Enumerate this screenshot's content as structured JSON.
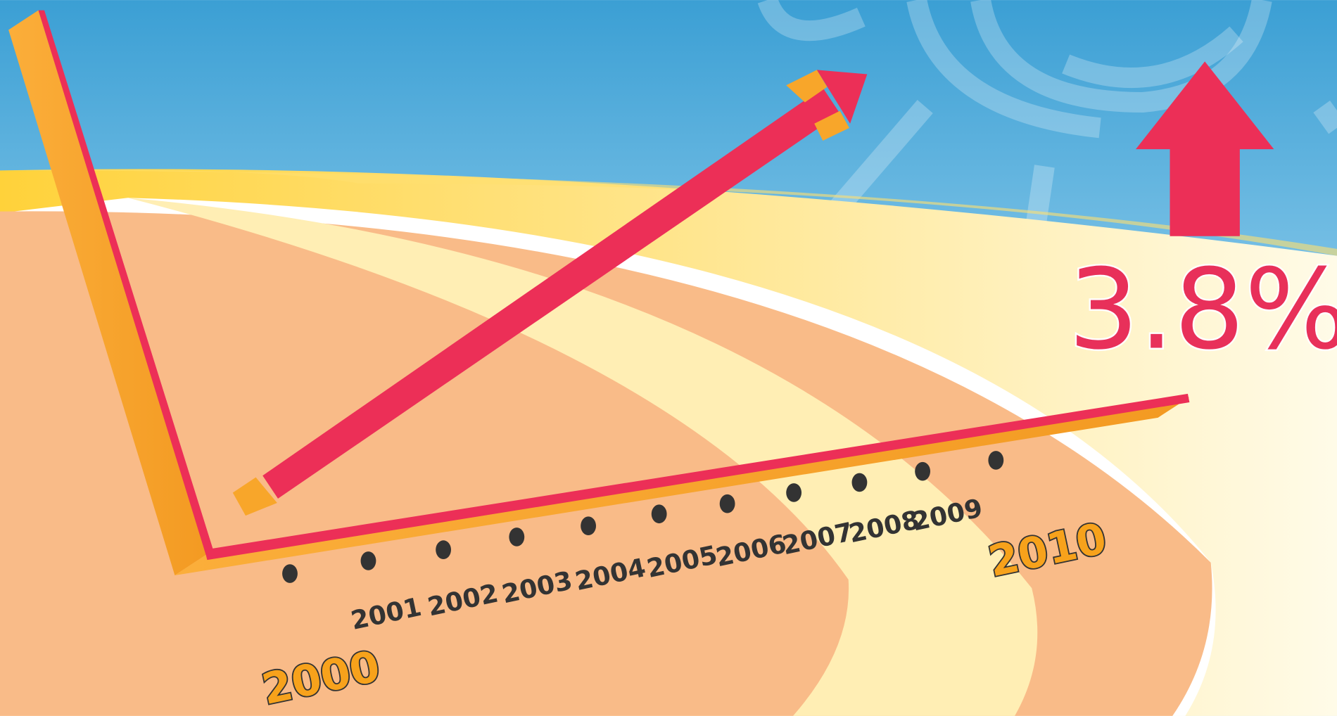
{
  "callout": {
    "text": "3.8%"
  },
  "years": [
    "2000",
    "2001",
    "2002",
    "2003",
    "2004",
    "2005",
    "2006",
    "2007",
    "2008",
    "2009",
    "2010"
  ]
}
